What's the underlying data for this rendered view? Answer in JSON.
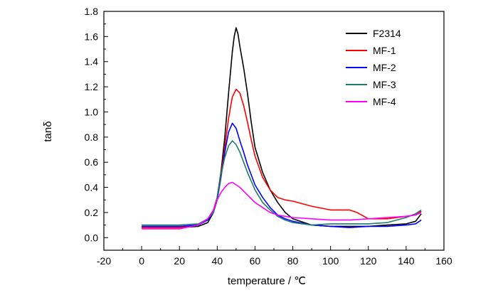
{
  "chart_data": {
    "type": "line",
    "xlabel": "temperature / ℃",
    "ylabel": "tanδ",
    "xlim": [
      -20,
      160
    ],
    "ylim": [
      -0.1,
      1.8
    ],
    "x_ticks": [
      "-20",
      "0",
      "20",
      "40",
      "60",
      "80",
      "100",
      "120",
      "140",
      "160"
    ],
    "y_ticks": [
      "0.0",
      "0.2",
      "0.4",
      "0.6",
      "0.8",
      "1.0",
      "1.2",
      "1.4",
      "1.6",
      "1.8"
    ],
    "legend_position": "top-right",
    "grid": false,
    "series": [
      {
        "name": "F2314",
        "color": "#000000",
        "x": [
          0,
          20,
          30,
          35,
          38,
          40,
          42,
          44,
          46,
          48,
          49,
          50,
          51,
          52,
          54,
          56,
          58,
          60,
          64,
          68,
          72,
          76,
          80,
          90,
          100,
          110,
          120,
          130,
          140,
          145,
          148
        ],
        "y": [
          0.08,
          0.08,
          0.09,
          0.12,
          0.2,
          0.32,
          0.52,
          0.8,
          1.15,
          1.48,
          1.6,
          1.67,
          1.62,
          1.52,
          1.35,
          1.15,
          0.92,
          0.72,
          0.52,
          0.38,
          0.28,
          0.2,
          0.15,
          0.1,
          0.09,
          0.09,
          0.09,
          0.1,
          0.11,
          0.13,
          0.19
        ]
      },
      {
        "name": "MF-1",
        "color": "#ff0000",
        "x": [
          0,
          20,
          30,
          35,
          38,
          40,
          42,
          44,
          46,
          48,
          50,
          52,
          54,
          56,
          58,
          60,
          64,
          68,
          72,
          76,
          80,
          90,
          100,
          110,
          114,
          120,
          130,
          140,
          145,
          148
        ],
        "y": [
          0.08,
          0.08,
          0.1,
          0.15,
          0.22,
          0.32,
          0.5,
          0.72,
          0.95,
          1.12,
          1.18,
          1.15,
          1.05,
          0.92,
          0.78,
          0.65,
          0.48,
          0.38,
          0.32,
          0.3,
          0.29,
          0.25,
          0.22,
          0.22,
          0.2,
          0.15,
          0.15,
          0.17,
          0.18,
          0.21
        ]
      },
      {
        "name": "MF-2",
        "color": "#0000ff",
        "x": [
          0,
          20,
          30,
          35,
          38,
          40,
          42,
          44,
          46,
          48,
          50,
          52,
          54,
          56,
          58,
          60,
          64,
          68,
          72,
          76,
          80,
          90,
          100,
          110,
          120,
          130,
          140,
          145,
          148
        ],
        "y": [
          0.09,
          0.09,
          0.1,
          0.14,
          0.2,
          0.3,
          0.48,
          0.68,
          0.84,
          0.91,
          0.87,
          0.77,
          0.68,
          0.58,
          0.5,
          0.42,
          0.32,
          0.24,
          0.18,
          0.15,
          0.13,
          0.1,
          0.09,
          0.08,
          0.09,
          0.09,
          0.1,
          0.11,
          0.14
        ]
      },
      {
        "name": "MF-3",
        "color": "#1f7a6e",
        "x": [
          0,
          20,
          30,
          35,
          38,
          40,
          42,
          44,
          46,
          48,
          50,
          52,
          54,
          56,
          58,
          60,
          64,
          68,
          72,
          76,
          80,
          90,
          100,
          110,
          120,
          130,
          140,
          145,
          148
        ],
        "y": [
          0.1,
          0.1,
          0.11,
          0.15,
          0.2,
          0.32,
          0.5,
          0.64,
          0.73,
          0.77,
          0.74,
          0.68,
          0.6,
          0.52,
          0.45,
          0.38,
          0.28,
          0.22,
          0.17,
          0.14,
          0.12,
          0.1,
          0.11,
          0.11,
          0.11,
          0.12,
          0.16,
          0.19,
          0.22
        ]
      },
      {
        "name": "MF-4",
        "color": "#ff00ff",
        "x": [
          0,
          20,
          30,
          35,
          38,
          40,
          42,
          44,
          46,
          48,
          50,
          52,
          54,
          56,
          58,
          60,
          64,
          68,
          72,
          76,
          80,
          90,
          100,
          110,
          120,
          130,
          140,
          145,
          148
        ],
        "y": [
          0.07,
          0.07,
          0.1,
          0.15,
          0.22,
          0.3,
          0.36,
          0.4,
          0.43,
          0.44,
          0.42,
          0.4,
          0.37,
          0.34,
          0.31,
          0.28,
          0.24,
          0.2,
          0.18,
          0.17,
          0.16,
          0.15,
          0.14,
          0.14,
          0.15,
          0.16,
          0.17,
          0.18,
          0.2
        ]
      }
    ]
  }
}
